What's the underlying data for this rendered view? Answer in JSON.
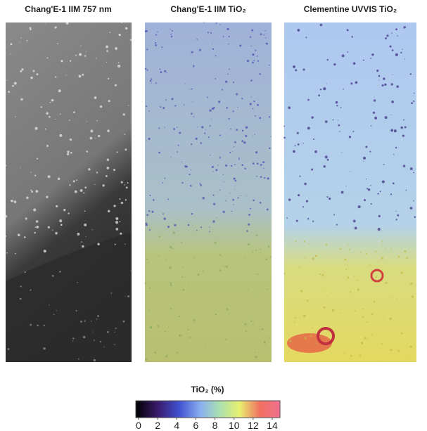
{
  "panels": [
    {
      "title": "Chang'E-1 IIM 757 nm"
    },
    {
      "title": "Chang'E-1 IIM TiO₂"
    },
    {
      "title": "Clementine  UVVIS TiO₂"
    }
  ],
  "colorbar": {
    "label": "TiO₂ (%)",
    "range": [
      0,
      14
    ],
    "ticks": [
      0,
      2,
      4,
      6,
      8,
      10,
      12,
      14
    ]
  }
}
